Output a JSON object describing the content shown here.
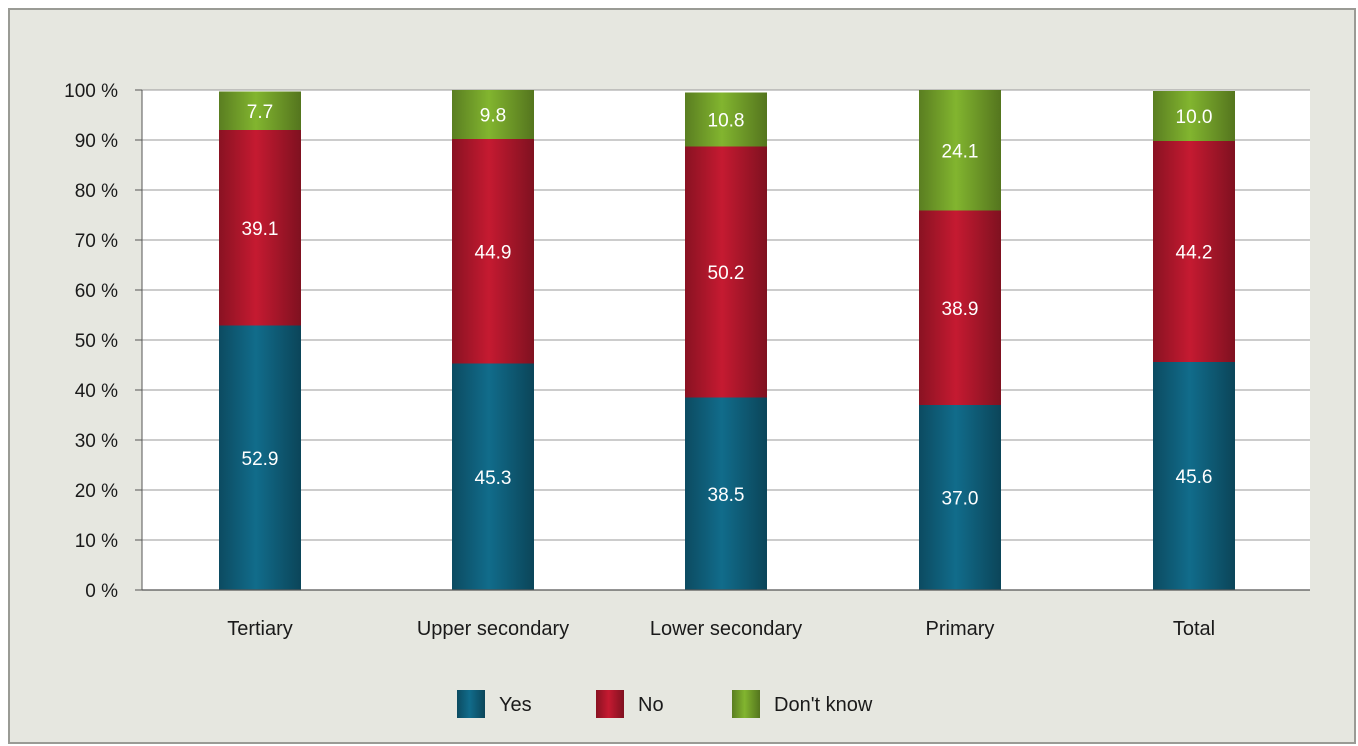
{
  "chart_data": {
    "type": "bar",
    "stacked": true,
    "categories": [
      "Tertiary",
      "Upper secondary",
      "Lower secondary",
      "Primary",
      "Total"
    ],
    "series": [
      {
        "name": "Yes",
        "values": [
          52.9,
          45.3,
          38.5,
          37.0,
          45.6
        ],
        "labels": [
          "52.9",
          "45.3",
          "38.5",
          "37.0",
          "45.6"
        ],
        "color": "#0f607c"
      },
      {
        "name": "No",
        "values": [
          39.1,
          44.9,
          50.2,
          38.9,
          44.2
        ],
        "labels": [
          "39.1",
          "44.9",
          "50.2",
          "38.9",
          "44.2"
        ],
        "color": "#b0172c"
      },
      {
        "name": "Don't know",
        "values": [
          7.7,
          9.8,
          10.8,
          24.1,
          10.0
        ],
        "labels": [
          "7.7",
          "9.8",
          "10.8",
          "24.1",
          "10.0"
        ],
        "color": "#74a22a"
      }
    ],
    "yticks": [
      "0 %",
      "10 %",
      "20 %",
      "30 %",
      "40 %",
      "50 %",
      "60 %",
      "70 %",
      "80 %",
      "90 %",
      "100 %"
    ],
    "ylim": [
      0,
      100
    ],
    "grid": true,
    "legend": "bottom"
  },
  "colors": {
    "frame_background": "#e6e7e0",
    "plot_background": "#ffffff",
    "gridline": "#9a9a9a"
  }
}
